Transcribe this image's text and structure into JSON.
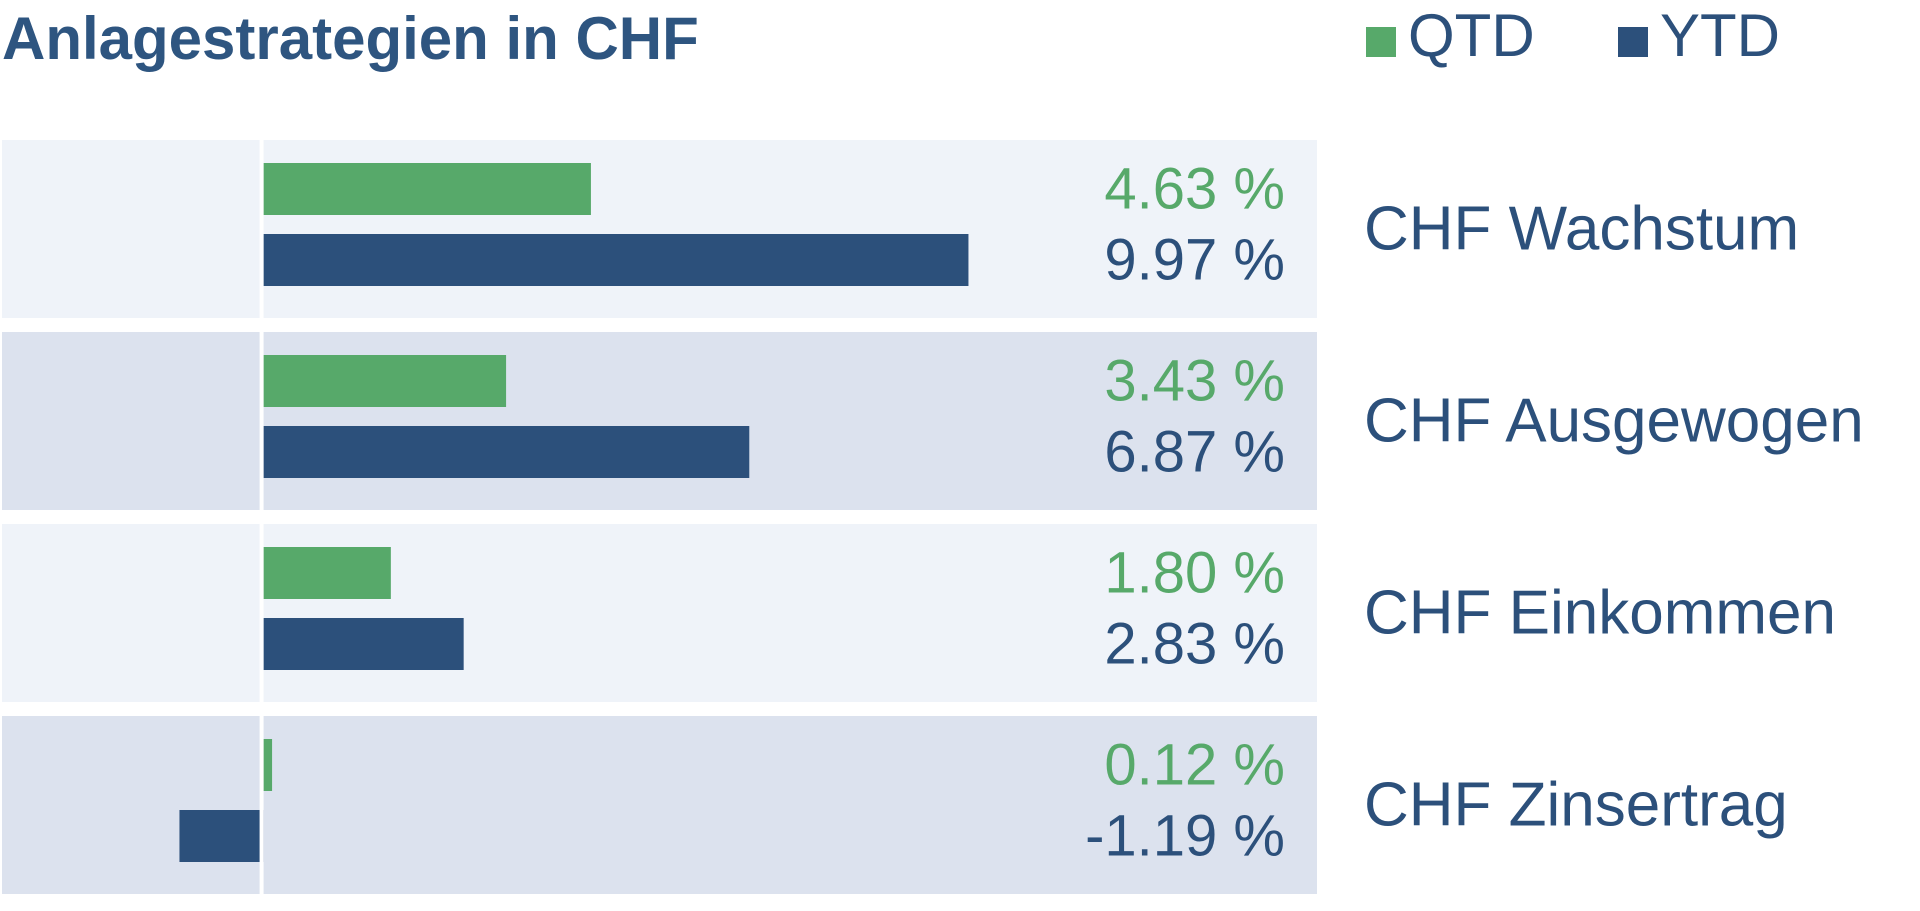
{
  "chart_data": {
    "type": "bar",
    "orientation": "horizontal",
    "title": "Anlagestrategien in CHF",
    "legend_placement": "top-right",
    "categories": [
      "CHF Wachstum",
      "CHF Ausgewogen",
      "CHF Einkommen",
      "CHF Zinsertrag"
    ],
    "series": [
      {
        "name": "QTD",
        "color": "#57a96a",
        "values": [
          4.63,
          3.43,
          1.8,
          0.12
        ],
        "labels": [
          "4.63 %",
          "3.43 %",
          "1.80 %",
          "0.12 %"
        ]
      },
      {
        "name": "YTD",
        "color": "#2c507b",
        "values": [
          9.97,
          6.87,
          2.83,
          -1.19
        ],
        "labels": [
          "9.97 %",
          "6.87 %",
          "2.83 %",
          "-1.19 %"
        ]
      }
    ],
    "xlim": [
      -3.7,
      14.9
    ],
    "grid": false,
    "row_colors": [
      "#eff3f9",
      "#dce2ee"
    ]
  }
}
